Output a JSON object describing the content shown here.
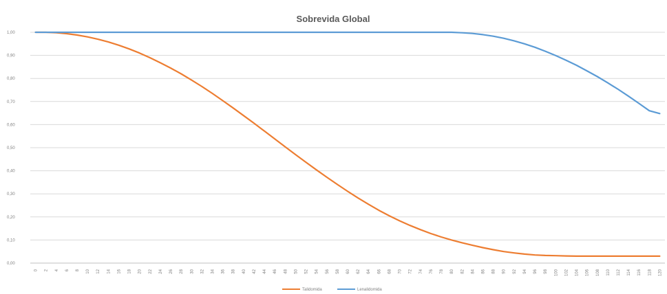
{
  "chart_data": {
    "type": "line",
    "title": "Sobrevida Global",
    "xlabel": "",
    "ylabel": "",
    "ylim": [
      0,
      1
    ],
    "y_ticks": [
      "0,00",
      "0,10",
      "0,20",
      "0,30",
      "0,40",
      "0,50",
      "0,60",
      "0,70",
      "0,80",
      "0,90",
      "1,00"
    ],
    "categories": [
      "0",
      "2",
      "4",
      "6",
      "8",
      "10",
      "12",
      "14",
      "16",
      "18",
      "20",
      "22",
      "24",
      "26",
      "28",
      "30",
      "32",
      "34",
      "36",
      "38",
      "40",
      "42",
      "44",
      "46",
      "48",
      "50",
      "52",
      "54",
      "56",
      "58",
      "60",
      "62",
      "64",
      "66",
      "68",
      "70",
      "72",
      "74",
      "76",
      "78",
      "80",
      "82",
      "84",
      "86",
      "88",
      "90",
      "92",
      "94",
      "96",
      "98",
      "100",
      "102",
      "104",
      "106",
      "108",
      "110",
      "112",
      "114",
      "116",
      "118",
      "120"
    ],
    "grid": true,
    "legend_position": "bottom",
    "series": [
      {
        "name": "Talidomida",
        "color": "#ED7D31",
        "values": [
          1.0,
          1.0,
          0.998,
          0.994,
          0.988,
          0.98,
          0.97,
          0.958,
          0.944,
          0.928,
          0.91,
          0.89,
          0.868,
          0.845,
          0.82,
          0.793,
          0.765,
          0.735,
          0.704,
          0.672,
          0.639,
          0.606,
          0.572,
          0.538,
          0.504,
          0.47,
          0.437,
          0.404,
          0.372,
          0.341,
          0.311,
          0.282,
          0.255,
          0.229,
          0.205,
          0.183,
          0.163,
          0.145,
          0.128,
          0.113,
          0.1,
          0.088,
          0.077,
          0.067,
          0.058,
          0.05,
          0.044,
          0.039,
          0.035,
          0.033,
          0.032,
          0.031,
          0.03,
          0.03,
          0.03,
          0.03,
          0.03,
          0.03,
          0.03,
          0.03,
          0.03
        ]
      },
      {
        "name": "Lenalidomida",
        "color": "#5B9BD5",
        "values": [
          1.0,
          1.0,
          1.0,
          1.0,
          1.0,
          1.0,
          1.0,
          1.0,
          1.0,
          1.0,
          1.0,
          1.0,
          1.0,
          1.0,
          1.0,
          1.0,
          1.0,
          1.0,
          1.0,
          1.0,
          1.0,
          1.0,
          1.0,
          1.0,
          1.0,
          1.0,
          1.0,
          1.0,
          1.0,
          1.0,
          1.0,
          1.0,
          1.0,
          1.0,
          1.0,
          1.0,
          1.0,
          1.0,
          1.0,
          1.0,
          1.0,
          0.998,
          0.995,
          0.99,
          0.983,
          0.974,
          0.963,
          0.95,
          0.935,
          0.918,
          0.899,
          0.879,
          0.857,
          0.833,
          0.808,
          0.781,
          0.753,
          0.723,
          0.692,
          0.66,
          0.648
        ]
      }
    ]
  }
}
